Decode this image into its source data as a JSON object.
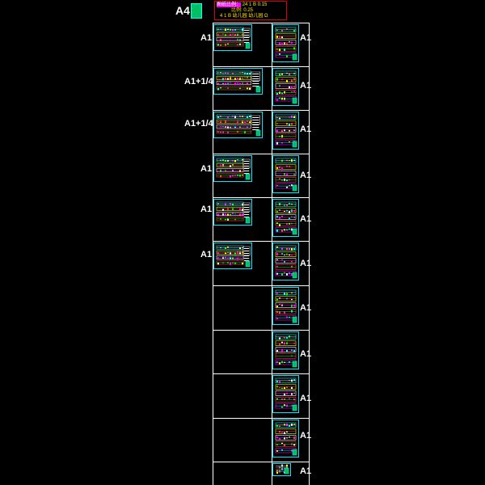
{
  "header": {
    "a4_label": "A4",
    "legend_line1_hl": "图纸比例：",
    "legend_line1": "24 1 B  0.15",
    "legend_line2": "比例: 0.25",
    "legend_line3": "4 1 B  幼儿园   幼儿园 Ω"
  },
  "left_labels": [
    "A1",
    "A1+1/4",
    "A1+1/4",
    "A1",
    "A1",
    "A1"
  ],
  "right_labels": [
    "A1",
    "A1",
    "A1",
    "A1",
    "A1",
    "A1",
    "A1",
    "A1",
    "A1",
    "A1",
    "A1"
  ],
  "colors": {
    "background": "#000000",
    "frame_border": "#00e8ff",
    "grid_line": "#ffffff",
    "legend_border": "#e00000",
    "accent_magenta": "#ff00ff",
    "accent_green": "#00ff00",
    "accent_cyan": "#00ffff",
    "accent_yellow": "#ffff00"
  }
}
